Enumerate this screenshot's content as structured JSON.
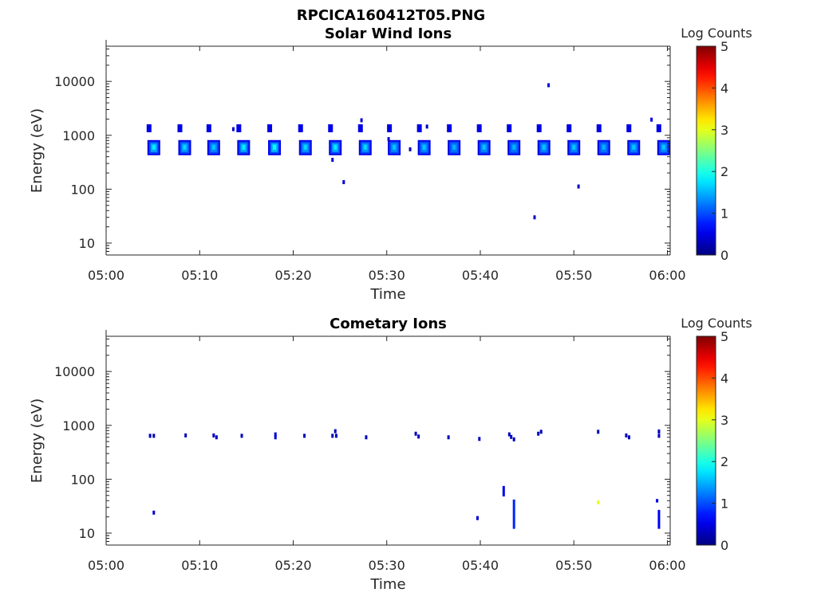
{
  "figure": {
    "title": "RPCICA160412T05.PNG"
  },
  "colors": {
    "axis": "#262626",
    "background": "#ffffff"
  },
  "chart_data": [
    {
      "type": "heatmap",
      "title": "Solar Wind Ions",
      "xlabel": "Time",
      "ylabel": "Energy (eV)",
      "xticks": [
        "05:00",
        "05:10",
        "05:20",
        "05:30",
        "05:40",
        "05:50",
        "06:00"
      ],
      "xlim_minutes": [
        0,
        60.3
      ],
      "yscale": "log",
      "ylim": [
        6,
        45000
      ],
      "yticks": [
        10,
        100,
        1000,
        10000
      ],
      "ytick_labels": [
        "10",
        "100",
        "1000",
        "10000"
      ],
      "colorbar": {
        "label": "Log Counts",
        "range": [
          0,
          5
        ],
        "ticks": [
          "0",
          "1",
          "2",
          "3",
          "4",
          "5"
        ],
        "colormap": "jet"
      },
      "beam_times_minutes": [
        5.1,
        8.4,
        11.5,
        14.7,
        18.0,
        21.3,
        24.5,
        27.7,
        30.8,
        34.0,
        37.2,
        40.4,
        43.6,
        46.8,
        50.0,
        53.2,
        56.4,
        59.6
      ],
      "beam_peak_logcounts": [
        1.8,
        1.7,
        1.6,
        1.8,
        1.9,
        1.7,
        1.8,
        1.7,
        1.6,
        1.6,
        1.5,
        1.6,
        1.5,
        1.6,
        1.6,
        1.5,
        1.6,
        1.6
      ],
      "beam_energy_ev": 600,
      "alpha_energy_ev": 1350,
      "isolated_points": [
        {
          "t": 47.3,
          "e": 8500,
          "v": 0.4
        },
        {
          "t": 25.4,
          "e": 135,
          "v": 0.4
        },
        {
          "t": 50.5,
          "e": 112,
          "v": 0.3
        },
        {
          "t": 45.8,
          "e": 30,
          "v": 0.4
        },
        {
          "t": 13.6,
          "e": 1300,
          "v": 0.4
        },
        {
          "t": 24.2,
          "e": 350,
          "v": 0.4
        },
        {
          "t": 32.5,
          "e": 550,
          "v": 0.3
        },
        {
          "t": 34.3,
          "e": 1450,
          "v": 0.3
        },
        {
          "t": 58.3,
          "e": 1950,
          "v": 0.5
        },
        {
          "t": 27.3,
          "e": 1900,
          "v": 0.4
        },
        {
          "t": 30.2,
          "e": 850,
          "v": 0.4
        }
      ]
    },
    {
      "type": "heatmap",
      "title": "Cometary Ions",
      "xlabel": "Time",
      "ylabel": "Energy (eV)",
      "xticks": [
        "05:00",
        "05:10",
        "05:20",
        "05:30",
        "05:40",
        "05:50",
        "06:00"
      ],
      "xlim_minutes": [
        0,
        60.3
      ],
      "yscale": "log",
      "ylim": [
        6,
        45000
      ],
      "yticks": [
        10,
        100,
        1000,
        10000
      ],
      "ytick_labels": [
        "10",
        "100",
        "1000",
        "10000"
      ],
      "colorbar": {
        "label": "Log Counts",
        "range": [
          0,
          5
        ],
        "ticks": [
          "0",
          "1",
          "2",
          "3",
          "4",
          "5"
        ],
        "colormap": "jet"
      },
      "points": [
        {
          "t": 4.7,
          "e": 640,
          "v": 0.3
        },
        {
          "t": 5.1,
          "e": 640,
          "v": 0.3
        },
        {
          "t": 8.5,
          "e": 650,
          "v": 0.3
        },
        {
          "t": 11.5,
          "e": 650,
          "v": 0.3
        },
        {
          "t": 11.8,
          "e": 600,
          "v": 0.3
        },
        {
          "t": 14.5,
          "e": 640,
          "v": 0.3
        },
        {
          "t": 18.1,
          "e": 680,
          "v": 0.4
        },
        {
          "t": 18.1,
          "e": 600,
          "v": 0.4
        },
        {
          "t": 21.2,
          "e": 640,
          "v": 0.3
        },
        {
          "t": 24.2,
          "e": 640,
          "v": 0.3
        },
        {
          "t": 24.5,
          "e": 780,
          "v": 0.3
        },
        {
          "t": 24.6,
          "e": 640,
          "v": 0.3
        },
        {
          "t": 27.8,
          "e": 600,
          "v": 0.3
        },
        {
          "t": 33.1,
          "e": 700,
          "v": 0.3
        },
        {
          "t": 33.4,
          "e": 620,
          "v": 0.3
        },
        {
          "t": 36.6,
          "e": 600,
          "v": 0.3
        },
        {
          "t": 39.9,
          "e": 560,
          "v": 0.3
        },
        {
          "t": 43.1,
          "e": 680,
          "v": 0.3
        },
        {
          "t": 43.3,
          "e": 610,
          "v": 0.3
        },
        {
          "t": 43.6,
          "e": 550,
          "v": 0.3
        },
        {
          "t": 46.2,
          "e": 700,
          "v": 0.3
        },
        {
          "t": 46.5,
          "e": 760,
          "v": 0.3
        },
        {
          "t": 52.6,
          "e": 760,
          "v": 0.3
        },
        {
          "t": 55.6,
          "e": 650,
          "v": 0.3
        },
        {
          "t": 55.9,
          "e": 600,
          "v": 0.3
        },
        {
          "t": 59.1,
          "e": 770,
          "v": 0.3
        },
        {
          "t": 59.1,
          "e": 640,
          "v": 0.3
        },
        {
          "t": 5.1,
          "e": 24,
          "v": 0.4
        },
        {
          "t": 39.7,
          "e": 19,
          "v": 0.4
        },
        {
          "t": 52.6,
          "e": 37,
          "v": 3.0
        }
      ],
      "streaks": [
        {
          "t": 42.5,
          "e_low": 48,
          "e_high": 75,
          "v": 0.5
        },
        {
          "t": 43.6,
          "e_low": 12,
          "e_high": 42,
          "v": 0.8
        },
        {
          "t": 58.9,
          "e_low": 37,
          "e_high": 43,
          "v": 0.5
        },
        {
          "t": 59.1,
          "e_low": 12,
          "e_high": 27,
          "v": 0.6
        }
      ]
    }
  ]
}
